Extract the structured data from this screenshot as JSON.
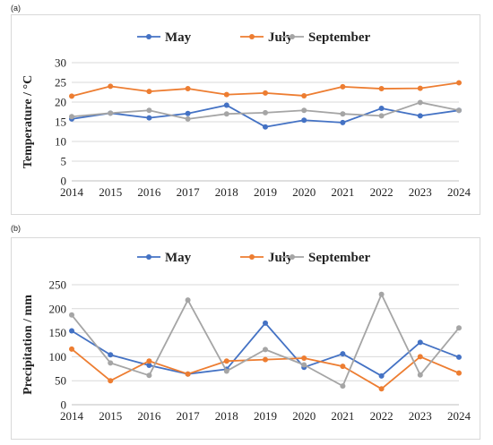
{
  "chart_data": [
    {
      "panel_label": "(a)",
      "type": "line",
      "title": "",
      "xlabel": "",
      "ylabel": "Temperature / °C",
      "ylim": [
        0,
        30
      ],
      "yticks": [
        0,
        5,
        10,
        15,
        20,
        25,
        30
      ],
      "grid": true,
      "legend_position": "top-center",
      "x": [
        "2014",
        "2015",
        "2016",
        "2017",
        "2018",
        "2019",
        "2020",
        "2021",
        "2022",
        "2023",
        "2024"
      ],
      "series": [
        {
          "name": "May",
          "color": "#4472C4",
          "values": [
            15.7,
            17.2,
            16.0,
            17.1,
            19.2,
            13.7,
            15.4,
            14.8,
            18.4,
            16.5,
            17.9
          ]
        },
        {
          "name": "July",
          "color": "#ED7D31",
          "values": [
            21.5,
            24.0,
            22.7,
            23.4,
            21.9,
            22.3,
            21.6,
            23.9,
            23.4,
            23.5,
            24.9
          ]
        },
        {
          "name": "September",
          "color": "#A5A5A5",
          "values": [
            16.3,
            17.2,
            17.9,
            15.7,
            17.0,
            17.3,
            17.9,
            17.0,
            16.5,
            19.9,
            17.9
          ]
        }
      ]
    },
    {
      "panel_label": "(b)",
      "type": "line",
      "title": "",
      "xlabel": "",
      "ylabel": "Precipitation / mm",
      "ylim": [
        0,
        250
      ],
      "yticks": [
        0,
        50,
        100,
        150,
        200,
        250
      ],
      "grid": true,
      "legend_position": "top-center",
      "x": [
        "2014",
        "2015",
        "2016",
        "2017",
        "2018",
        "2019",
        "2020",
        "2021",
        "2022",
        "2023",
        "2024"
      ],
      "series": [
        {
          "name": "May",
          "color": "#4472C4",
          "values": [
            154,
            104,
            82,
            64,
            74,
            170,
            78,
            106,
            60,
            130,
            99
          ]
        },
        {
          "name": "July",
          "color": "#ED7D31",
          "values": [
            116,
            50,
            91,
            64,
            91,
            94,
            97,
            80,
            33,
            100,
            66
          ]
        },
        {
          "name": "September",
          "color": "#A5A5A5",
          "values": [
            187,
            87,
            61,
            218,
            70,
            115,
            83,
            39,
            230,
            62,
            160
          ]
        }
      ]
    }
  ]
}
